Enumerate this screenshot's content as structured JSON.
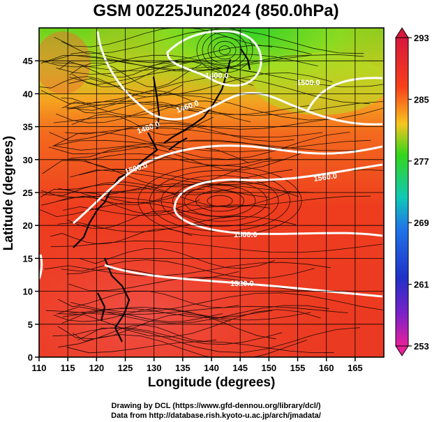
{
  "title": "GSM 00Z25Jun2024 (850.0hPa)",
  "axes": {
    "x_label": "Longitude (degrees)",
    "y_label": "Latitude  (degrees)",
    "x_ticks": [
      "110",
      "115",
      "120",
      "125",
      "130",
      "135",
      "140",
      "145",
      "150",
      "155",
      "160",
      "165"
    ],
    "y_ticks": [
      "0",
      "5",
      "10",
      "15",
      "20",
      "25",
      "30",
      "35",
      "40",
      "45"
    ]
  },
  "colorbar": {
    "ticks": [
      "293",
      "285",
      "277",
      "269",
      "261",
      "253"
    ],
    "colors": [
      "#d7183c",
      "#f8401a",
      "#f7c520",
      "#33d61a",
      "#10c8b8",
      "#1f74e8",
      "#2030c8",
      "#c020c0",
      "#e8209a"
    ]
  },
  "contours": {
    "labels": [
      "1400.0",
      "1460.0",
      "1460.0",
      "1500.0",
      "1560.0",
      "1560.0",
      "1520.0",
      "1500.0"
    ]
  },
  "credits": [
    "Drawing by DCL (https://www.gfd-dennou.org/library/dcl/)",
    "Data from http://database.rish.kyoto-u.ac.jp/arch/jmadata/"
  ]
}
